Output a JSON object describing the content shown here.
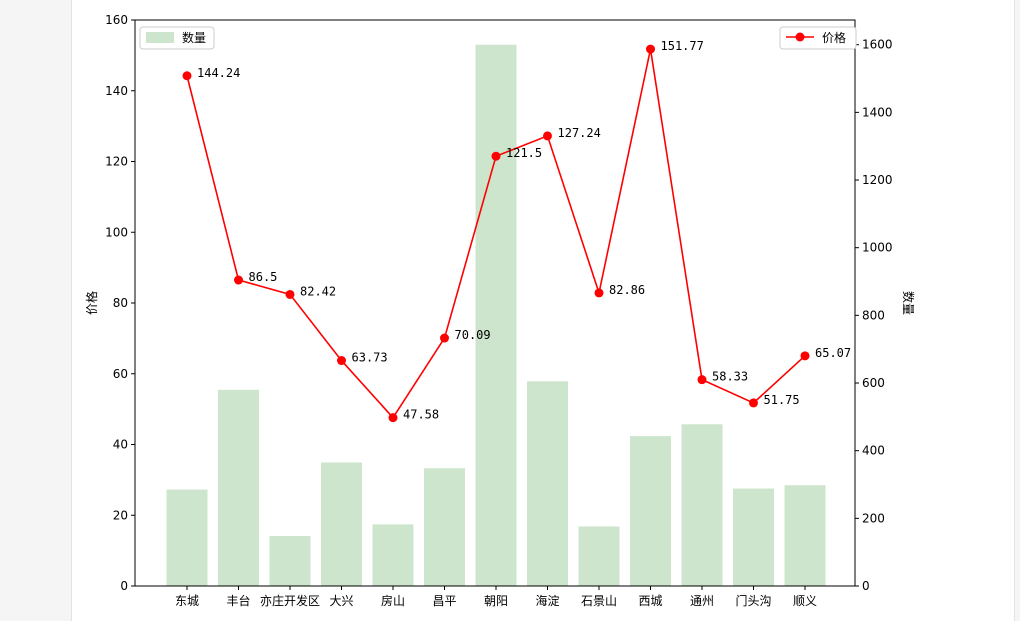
{
  "chart_data": {
    "type": "bar+line",
    "categories": [
      "东城",
      "丰台",
      "亦庄开发区",
      "大兴",
      "房山",
      "昌平",
      "朝阳",
      "海淀",
      "石景山",
      "西城",
      "通州",
      "门头沟",
      "顺义"
    ],
    "series": [
      {
        "name": "数量",
        "type": "bar",
        "axis": "right",
        "color": "#cde5cd",
        "values": [
          285,
          580,
          148,
          365,
          182,
          348,
          1600,
          605,
          176,
          443,
          478,
          288,
          298
        ]
      },
      {
        "name": "价格",
        "type": "line",
        "axis": "left",
        "color": "#ff0000",
        "values": [
          144.24,
          86.5,
          82.42,
          63.73,
          47.58,
          70.09,
          121.5,
          127.24,
          82.86,
          151.77,
          58.33,
          51.75,
          65.07
        ],
        "labels": [
          "144.24",
          "86.5",
          "82.42",
          "63.73",
          "47.58",
          "70.09",
          "121.5",
          "127.24",
          "82.86",
          "151.77",
          "58.33",
          "51.75",
          "65.07"
        ]
      }
    ],
    "ylabel_left": "价格",
    "ylabel_right": "数量",
    "ylim_left": [
      0,
      160
    ],
    "ylim_right": [
      0,
      1673
    ],
    "yticks_left": [
      0,
      20,
      40,
      60,
      80,
      100,
      120,
      140,
      160
    ],
    "yticks_right": [
      0,
      200,
      400,
      600,
      800,
      1000,
      1200,
      1400,
      1600
    ],
    "legend_bar": {
      "label": "数量",
      "placement": "top-left"
    },
    "legend_line": {
      "label": "价格",
      "placement": "top-right"
    }
  }
}
